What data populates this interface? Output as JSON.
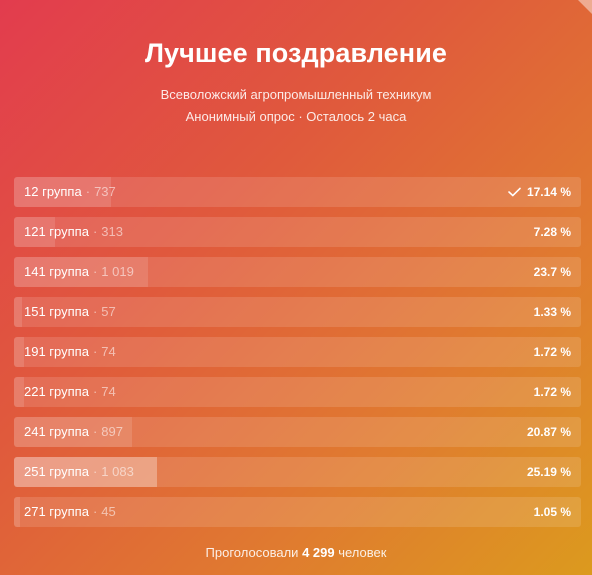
{
  "poll": {
    "title": "Лучшее поздравление",
    "subtitle": "Всеволожский агропромышленный техникум",
    "meta": "Анонимный опрос · Осталось 2 часа",
    "footer": {
      "prefix": "Проголосовали",
      "total": "4 299",
      "suffix": "человек"
    },
    "options": [
      {
        "label": "12 группа",
        "count": "737",
        "percent": "17.14 %",
        "share": 0.1714,
        "selected": true
      },
      {
        "label": "121 группа",
        "count": "313",
        "percent": "7.28 %",
        "share": 0.0728,
        "selected": false
      },
      {
        "label": "141 группа",
        "count": "1 019",
        "percent": "23.7 %",
        "share": 0.237,
        "selected": false
      },
      {
        "label": "151 группа",
        "count": "57",
        "percent": "1.33 %",
        "share": 0.0133,
        "selected": false
      },
      {
        "label": "191 группа",
        "count": "74",
        "percent": "1.72 %",
        "share": 0.0172,
        "selected": false
      },
      {
        "label": "221 группа",
        "count": "74",
        "percent": "1.72 %",
        "share": 0.0172,
        "selected": false
      },
      {
        "label": "241 группа",
        "count": "897",
        "percent": "20.87 %",
        "share": 0.2087,
        "selected": false
      },
      {
        "label": "251 группа",
        "count": "1 083",
        "percent": "25.19 %",
        "share": 0.2519,
        "selected": false
      },
      {
        "label": "271 группа",
        "count": "45",
        "percent": "1.05 %",
        "share": 0.0105,
        "selected": false
      }
    ],
    "separator": "·",
    "icons": {
      "selected": "check-icon",
      "corner": "corner-icon"
    },
    "colors": {
      "gradient_start": "#e23c4e",
      "gradient_end": "#dc9a1e"
    }
  }
}
